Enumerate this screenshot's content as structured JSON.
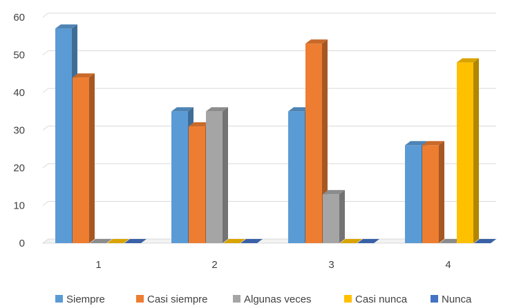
{
  "chart_data": {
    "type": "bar",
    "categories": [
      "1",
      "2",
      "3",
      "4"
    ],
    "series": [
      {
        "name": "Siempre",
        "values": [
          57,
          35,
          35,
          26
        ],
        "color": "#5B9BD5"
      },
      {
        "name": "Casi siempre",
        "values": [
          44,
          31,
          53,
          26
        ],
        "color": "#ED7D31"
      },
      {
        "name": "Algunas veces",
        "values": [
          0,
          35,
          13,
          0
        ],
        "color": "#A5A5A5"
      },
      {
        "name": "Casi nunca",
        "values": [
          0,
          0,
          0,
          48
        ],
        "color": "#FFC000"
      },
      {
        "name": "Nunca",
        "values": [
          0,
          0,
          0,
          0
        ],
        "color": "#4472C4"
      }
    ],
    "y_ticks": [
      "0",
      "10",
      "20",
      "30",
      "40",
      "50",
      "60"
    ],
    "ylim": [
      0,
      60
    ],
    "grid": true,
    "legend_position": "bottom",
    "style": "3d-clustered-column"
  }
}
